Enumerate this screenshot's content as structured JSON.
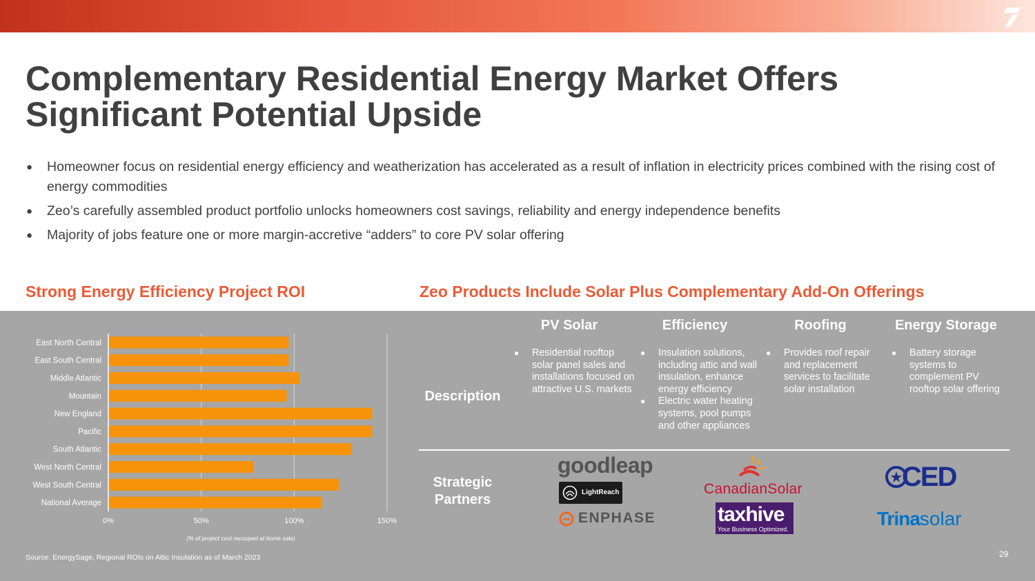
{
  "title": "Complementary Residential Energy Market Offers Significant Potential Upside",
  "bullets": [
    "Homeowner focus on residential energy efficiency and weatherization has accelerated as a result of inflation in electricity prices combined with the rising cost of energy commodities",
    "Zeo’s carefully assembled product portfolio unlocks homeowners cost savings, reliability and energy independence benefits",
    "Majority of jobs feature one or more margin-accretive “adders” to core PV solar offering"
  ],
  "section_left_title": "Strong Energy Efficiency Project ROI",
  "section_right_title": "Zeo Products Include Solar Plus Complementary Add-On Offerings",
  "chart_data": {
    "type": "bar",
    "orientation": "horizontal",
    "categories": [
      "East North Central",
      "East South Central",
      "Middle Atlantic",
      "Mountain",
      "New England",
      "Pacific",
      "South Atlantic",
      "West North Central",
      "West South Central",
      "National Average"
    ],
    "values": [
      97,
      97,
      103,
      96,
      142,
      142,
      131,
      78,
      124,
      115
    ],
    "xlim": [
      0,
      150
    ],
    "xticks": [
      0,
      50,
      100,
      150
    ],
    "xtick_labels": [
      "0%",
      "50%",
      "100%",
      "150%"
    ],
    "xlabel": "(% of project cost recouped at home sale)",
    "bar_color": "#f7930a",
    "gridlines": true
  },
  "table": {
    "columns": [
      "PV Solar",
      "Efficiency",
      "Roofing",
      "Energy Storage"
    ],
    "row_description_label": "Description",
    "row_partners_label": "Strategic Partners",
    "descriptions": [
      [
        "Residential rooftop solar panel sales and installations focused on attractive U.S. markets"
      ],
      [
        "Insulation solutions, including attic and wall insulation, enhance energy efficiency",
        "Electric water heating systems, pool pumps and other appliances"
      ],
      [
        "Provides roof repair and replacement services to facilitate solar installation"
      ],
      [
        "Battery storage systems to complement PV rooftop  solar offering"
      ]
    ],
    "partners": {
      "goodleap": "goodleap",
      "lightreach": "LightReach",
      "enphase": "ENPHASE",
      "canadian_solar": "CanadianSolar",
      "taxhive": "taxhive",
      "taxhive_tagline": "Your Business Optimized.",
      "ced": "CED",
      "trina_a": "Trina",
      "trina_b": "solar"
    }
  },
  "source_note": "Source:  EnergySage, Regional ROIs on Attic Insulation as of March 2023",
  "page_number": "29",
  "colors": {
    "accent": "#ea5b36",
    "panel": "#a6a6a6",
    "bar": "#f7930a",
    "title_text": "#404040"
  }
}
